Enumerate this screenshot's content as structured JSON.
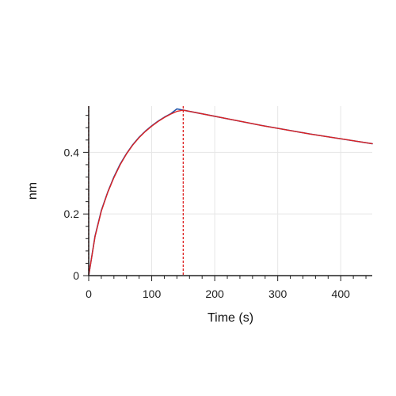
{
  "chart_data": {
    "type": "line",
    "title": "",
    "xlabel": "Time (s)",
    "ylabel": "nm",
    "xlim": [
      0,
      450
    ],
    "ylim": [
      0,
      0.55
    ],
    "x_ticks": [
      0,
      100,
      200,
      300,
      400
    ],
    "y_ticks": [
      0,
      0.2,
      0.4
    ],
    "x_tick_labels": [
      "0",
      "100",
      "200",
      "300",
      "400"
    ],
    "y_tick_labels": [
      "0",
      "0.2",
      "0.4"
    ],
    "grid": true,
    "series": [
      {
        "color": "#2255aa",
        "x": [
          0,
          10,
          20,
          30,
          40,
          50,
          60,
          70,
          80,
          90,
          100,
          110,
          120,
          130,
          140,
          150,
          175,
          200,
          225,
          250,
          275,
          300,
          325,
          350,
          375,
          400,
          425,
          450
        ],
        "y": [
          0.0,
          0.128,
          0.211,
          0.27,
          0.32,
          0.362,
          0.396,
          0.425,
          0.449,
          0.469,
          0.486,
          0.501,
          0.514,
          0.525,
          0.541,
          0.537,
          0.527,
          0.517,
          0.507,
          0.497,
          0.487,
          0.478,
          0.469,
          0.46,
          0.452,
          0.444,
          0.436,
          0.428
        ]
      },
      {
        "color": "#dd2222",
        "x": [
          0,
          10,
          20,
          30,
          40,
          50,
          60,
          70,
          80,
          90,
          100,
          110,
          120,
          130,
          140,
          150,
          175,
          200,
          225,
          250,
          275,
          300,
          325,
          350,
          375,
          400,
          425,
          450
        ],
        "y": [
          0.0,
          0.126,
          0.209,
          0.269,
          0.318,
          0.36,
          0.395,
          0.424,
          0.448,
          0.468,
          0.485,
          0.5,
          0.513,
          0.524,
          0.533,
          0.537,
          0.527,
          0.517,
          0.507,
          0.497,
          0.487,
          0.478,
          0.469,
          0.46,
          0.452,
          0.444,
          0.436,
          0.428
        ]
      }
    ],
    "reference_lines": [
      {
        "orientation": "vertical",
        "x": 0,
        "color": "#dd2222",
        "style": "dashed"
      },
      {
        "orientation": "vertical",
        "x": 150,
        "color": "#dd2222",
        "style": "dashed"
      }
    ]
  }
}
